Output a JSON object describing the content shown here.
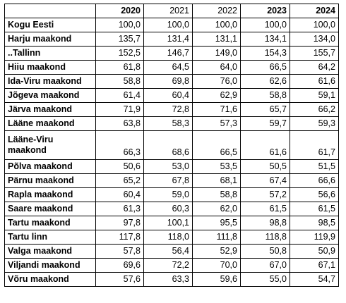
{
  "table": {
    "header": [
      "2020",
      "2021",
      "2022",
      "2023",
      "2024"
    ],
    "header_bold": [
      true,
      false,
      false,
      true,
      true
    ],
    "rows": [
      [
        "Kogu Eesti",
        "100,0",
        "100,0",
        "100,0",
        "100,0",
        "100,0"
      ],
      [
        "Harju maakond",
        "135,7",
        "131,4",
        "131,1",
        "134,1",
        "134,0"
      ],
      [
        "..Tallinn",
        "152,5",
        "146,7",
        "149,0",
        "154,3",
        "155,7"
      ],
      [
        "Hiiu maakond",
        "61,8",
        "64,5",
        "64,0",
        "66,5",
        "64,2"
      ],
      [
        "Ida-Viru maakond",
        "58,8",
        "69,8",
        "76,0",
        "62,6",
        "61,6"
      ],
      [
        "Jõgeva maakond",
        "61,4",
        "60,4",
        "62,9",
        "58,8",
        "59,1"
      ],
      [
        "Järva maakond",
        "71,9",
        "72,8",
        "71,6",
        "65,7",
        "66,2"
      ],
      [
        "Lääne maakond",
        "63,8",
        "58,3",
        "57,3",
        "59,7",
        "59,3"
      ],
      [
        "Lääne-Viru maakond",
        "66,3",
        "68,6",
        "66,5",
        "61,6",
        "61,7"
      ],
      [
        "Põlva maakond",
        "50,6",
        "53,0",
        "53,5",
        "50,5",
        "51,5"
      ],
      [
        "Pärnu maakond",
        "65,2",
        "67,8",
        "68,1",
        "67,4",
        "66,6"
      ],
      [
        "Rapla maakond",
        "60,4",
        "59,0",
        "58,8",
        "57,2",
        "56,6"
      ],
      [
        "Saare maakond",
        "61,3",
        "60,3",
        "62,0",
        "61,5",
        "61,5"
      ],
      [
        "Tartu maakond",
        "97,8",
        "100,1",
        "95,5",
        "98,8",
        "98,5"
      ],
      [
        "Tartu linn",
        "117,8",
        "118,0",
        "111,8",
        "118,8",
        "119,9"
      ],
      [
        "Valga maakond",
        "57,8",
        "56,4",
        "52,9",
        "50,8",
        "50,9"
      ],
      [
        "Viljandi maakond",
        "69,6",
        "72,2",
        "70,0",
        "67,0",
        "67,1"
      ],
      [
        "Võru maakond",
        "57,6",
        "63,3",
        "59,6",
        "55,0",
        "54,7"
      ]
    ]
  }
}
